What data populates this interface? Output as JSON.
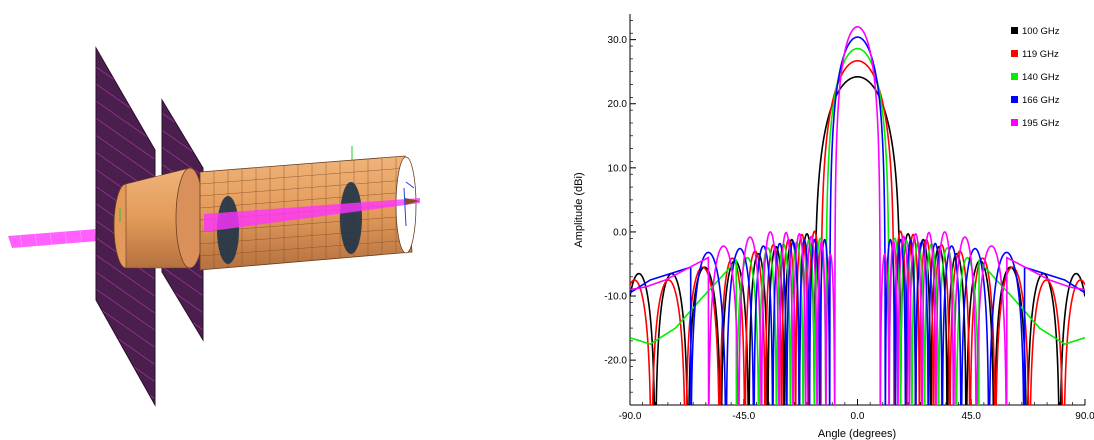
{
  "scene": {
    "colors": {
      "plane_fill": "#4a1e4d",
      "plane_hatch": "#c040c0",
      "horn_fill": "#e8a66a",
      "horn_grid": "#6b3f1f",
      "lens_fill": "#1e3448",
      "beam": "#ff33ff"
    }
  },
  "chart_data": {
    "type": "line",
    "title": "",
    "xlabel": "Angle (degrees)",
    "ylabel": "Amplitude (dBi)",
    "xlim": [
      -90,
      90
    ],
    "ylim": [
      -27,
      34
    ],
    "xticks": [
      -90,
      -45,
      0,
      45,
      90
    ],
    "xtick_labels": [
      "-90.0",
      "-45.0",
      "0.0",
      "45.0",
      "90.0"
    ],
    "yticks": [
      -20,
      -10,
      0,
      10,
      20,
      30
    ],
    "ytick_labels": [
      "-20.0",
      "-10.0",
      "0.0",
      "10.0",
      "20.0",
      "30.0"
    ],
    "grid": false,
    "legend_position": "top-right",
    "series": [
      {
        "name": "100 GHz",
        "color": "#000000",
        "peak": 24.2,
        "hw": 9.2,
        "sl_x": [
          20,
          26,
          32,
          39,
          48,
          60,
          75
        ],
        "sl_y": [
          -0.3,
          -1.2,
          -2.3,
          -3.4,
          -4.5,
          -5.5,
          -6.5
        ],
        "nulls": [
          17,
          23,
          29,
          35.5,
          43,
          54,
          67
        ]
      },
      {
        "name": "119 GHz",
        "color": "#ff0000",
        "peak": 26.7,
        "hw": 7.8,
        "sl_x": [
          17,
          22,
          27,
          33,
          40,
          49,
          60,
          76
        ],
        "sl_y": [
          0.1,
          -0.4,
          -1.2,
          -2.0,
          -3.0,
          -4.1,
          -5.5,
          -7.5
        ],
        "nulls": [
          14.5,
          19.5,
          24.5,
          30,
          36.5,
          44.5,
          54.5,
          68
        ]
      },
      {
        "name": "140 GHz",
        "color": "#00ee00",
        "peak": 28.6,
        "hw": 6.6,
        "sl_x": [
          15,
          19.5,
          24,
          29,
          35,
          43,
          55
        ],
        "sl_y": [
          -1.0,
          -1.3,
          -1.6,
          -1.9,
          -2.5,
          -4.0,
          -4.5
        ],
        "nulls": [
          12.5,
          17,
          21.5,
          26.5,
          32,
          39,
          48
        ],
        "tail": [
          [
            62,
            -10.5
          ],
          [
            72,
            -15
          ],
          [
            82,
            -17.5
          ],
          [
            90,
            -16.5
          ]
        ]
      },
      {
        "name": "166 GHz",
        "color": "#0000ff",
        "peak": 30.4,
        "hw": 5.6,
        "sl_x": [
          13,
          17,
          21,
          25.5,
          30.5,
          37,
          46,
          59,
          74
        ],
        "sl_y": [
          -1.2,
          -1.2,
          -1.3,
          -1.5,
          -1.8,
          -2.2,
          -2.6,
          -3.2,
          -5.5
        ],
        "nulls": [
          11,
          15,
          19,
          23,
          28,
          33.5,
          41,
          52,
          66
        ],
        "tail": [
          [
            82,
            -7.5
          ],
          [
            90,
            -9.5
          ]
        ]
      },
      {
        "name": "195 GHz",
        "color": "#ff00ff",
        "peak": 32.0,
        "hw": 4.9,
        "sl_x": [
          10,
          14,
          18.5,
          23,
          28,
          34,
          42,
          52,
          66
        ],
        "sl_y": [
          -3.5,
          -1.5,
          -0.7,
          -0.3,
          -0.1,
          0.0,
          -0.8,
          -2.2,
          -4.0
        ],
        "nulls": [
          9,
          12.5,
          16,
          20.5,
          25.5,
          31,
          38,
          47,
          59
        ],
        "tail": [
          [
            76,
            -7.5
          ],
          [
            84,
            -8.6
          ],
          [
            90,
            -9
          ]
        ]
      }
    ]
  }
}
